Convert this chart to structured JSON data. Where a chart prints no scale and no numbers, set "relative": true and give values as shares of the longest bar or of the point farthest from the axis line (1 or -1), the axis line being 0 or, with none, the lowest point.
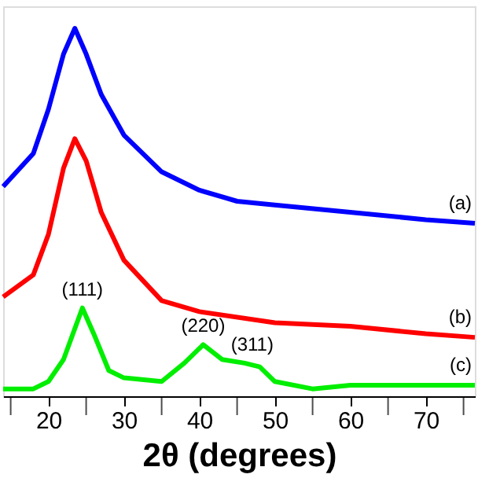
{
  "chart_data": {
    "type": "line",
    "relative": true,
    "xlabel": "2θ (degrees)",
    "xlim": [
      14,
      76.5
    ],
    "xticks": [
      {
        "value": 15,
        "label": null
      },
      20,
      {
        "value": 25,
        "label": null
      },
      30,
      {
        "value": 35,
        "label": null
      },
      40,
      {
        "value": 45,
        "label": null
      },
      50,
      {
        "value": 55,
        "label": null
      },
      60,
      {
        "value": 65,
        "label": null
      },
      70,
      {
        "value": 75,
        "label": null
      }
    ],
    "tick_labels": "x",
    "grid": false,
    "legend": false,
    "marker": "none",
    "line_style": "solid",
    "series": [
      {
        "name": "(a)",
        "color": "#0000ff",
        "x": [
          14,
          18,
          20,
          22,
          23.5,
          25,
          27,
          30,
          35,
          40,
          45,
          50,
          60,
          70,
          76.5
        ],
        "values": [
          0.57,
          0.66,
          0.78,
          0.93,
          1,
          0.93,
          0.82,
          0.71,
          0.61,
          0.56,
          0.53,
          0.52,
          0.5,
          0.48,
          0.47
        ]
      },
      {
        "name": "(b)",
        "color": "#ff0000",
        "x": [
          14,
          18,
          20,
          22,
          23.5,
          25,
          27,
          30,
          35,
          40,
          50,
          60,
          70,
          76.5
        ],
        "values": [
          0.27,
          0.33,
          0.44,
          0.62,
          0.7,
          0.64,
          0.5,
          0.37,
          0.26,
          0.23,
          0.2,
          0.19,
          0.17,
          0.16
        ]
      },
      {
        "name": "(c)",
        "color": "#00ee00",
        "x": [
          14,
          18,
          20,
          22,
          24.5,
          26,
          28,
          30,
          35,
          38,
          40.5,
          43,
          46,
          48,
          50,
          55,
          60,
          70,
          76.5
        ],
        "values": [
          0.02,
          0.02,
          0.04,
          0.1,
          0.24,
          0.17,
          0.07,
          0.05,
          0.04,
          0.09,
          0.14,
          0.1,
          0.09,
          0.08,
          0.04,
          0.02,
          0.03,
          0.03,
          0.03
        ]
      }
    ],
    "annotations": [
      {
        "text": "(111)",
        "x": 24.5,
        "y": 0.24
      },
      {
        "text": "(220)",
        "x": 40.5,
        "y": 0.14
      },
      {
        "text": "(311)",
        "x": 47,
        "y": 0.09
      }
    ]
  }
}
